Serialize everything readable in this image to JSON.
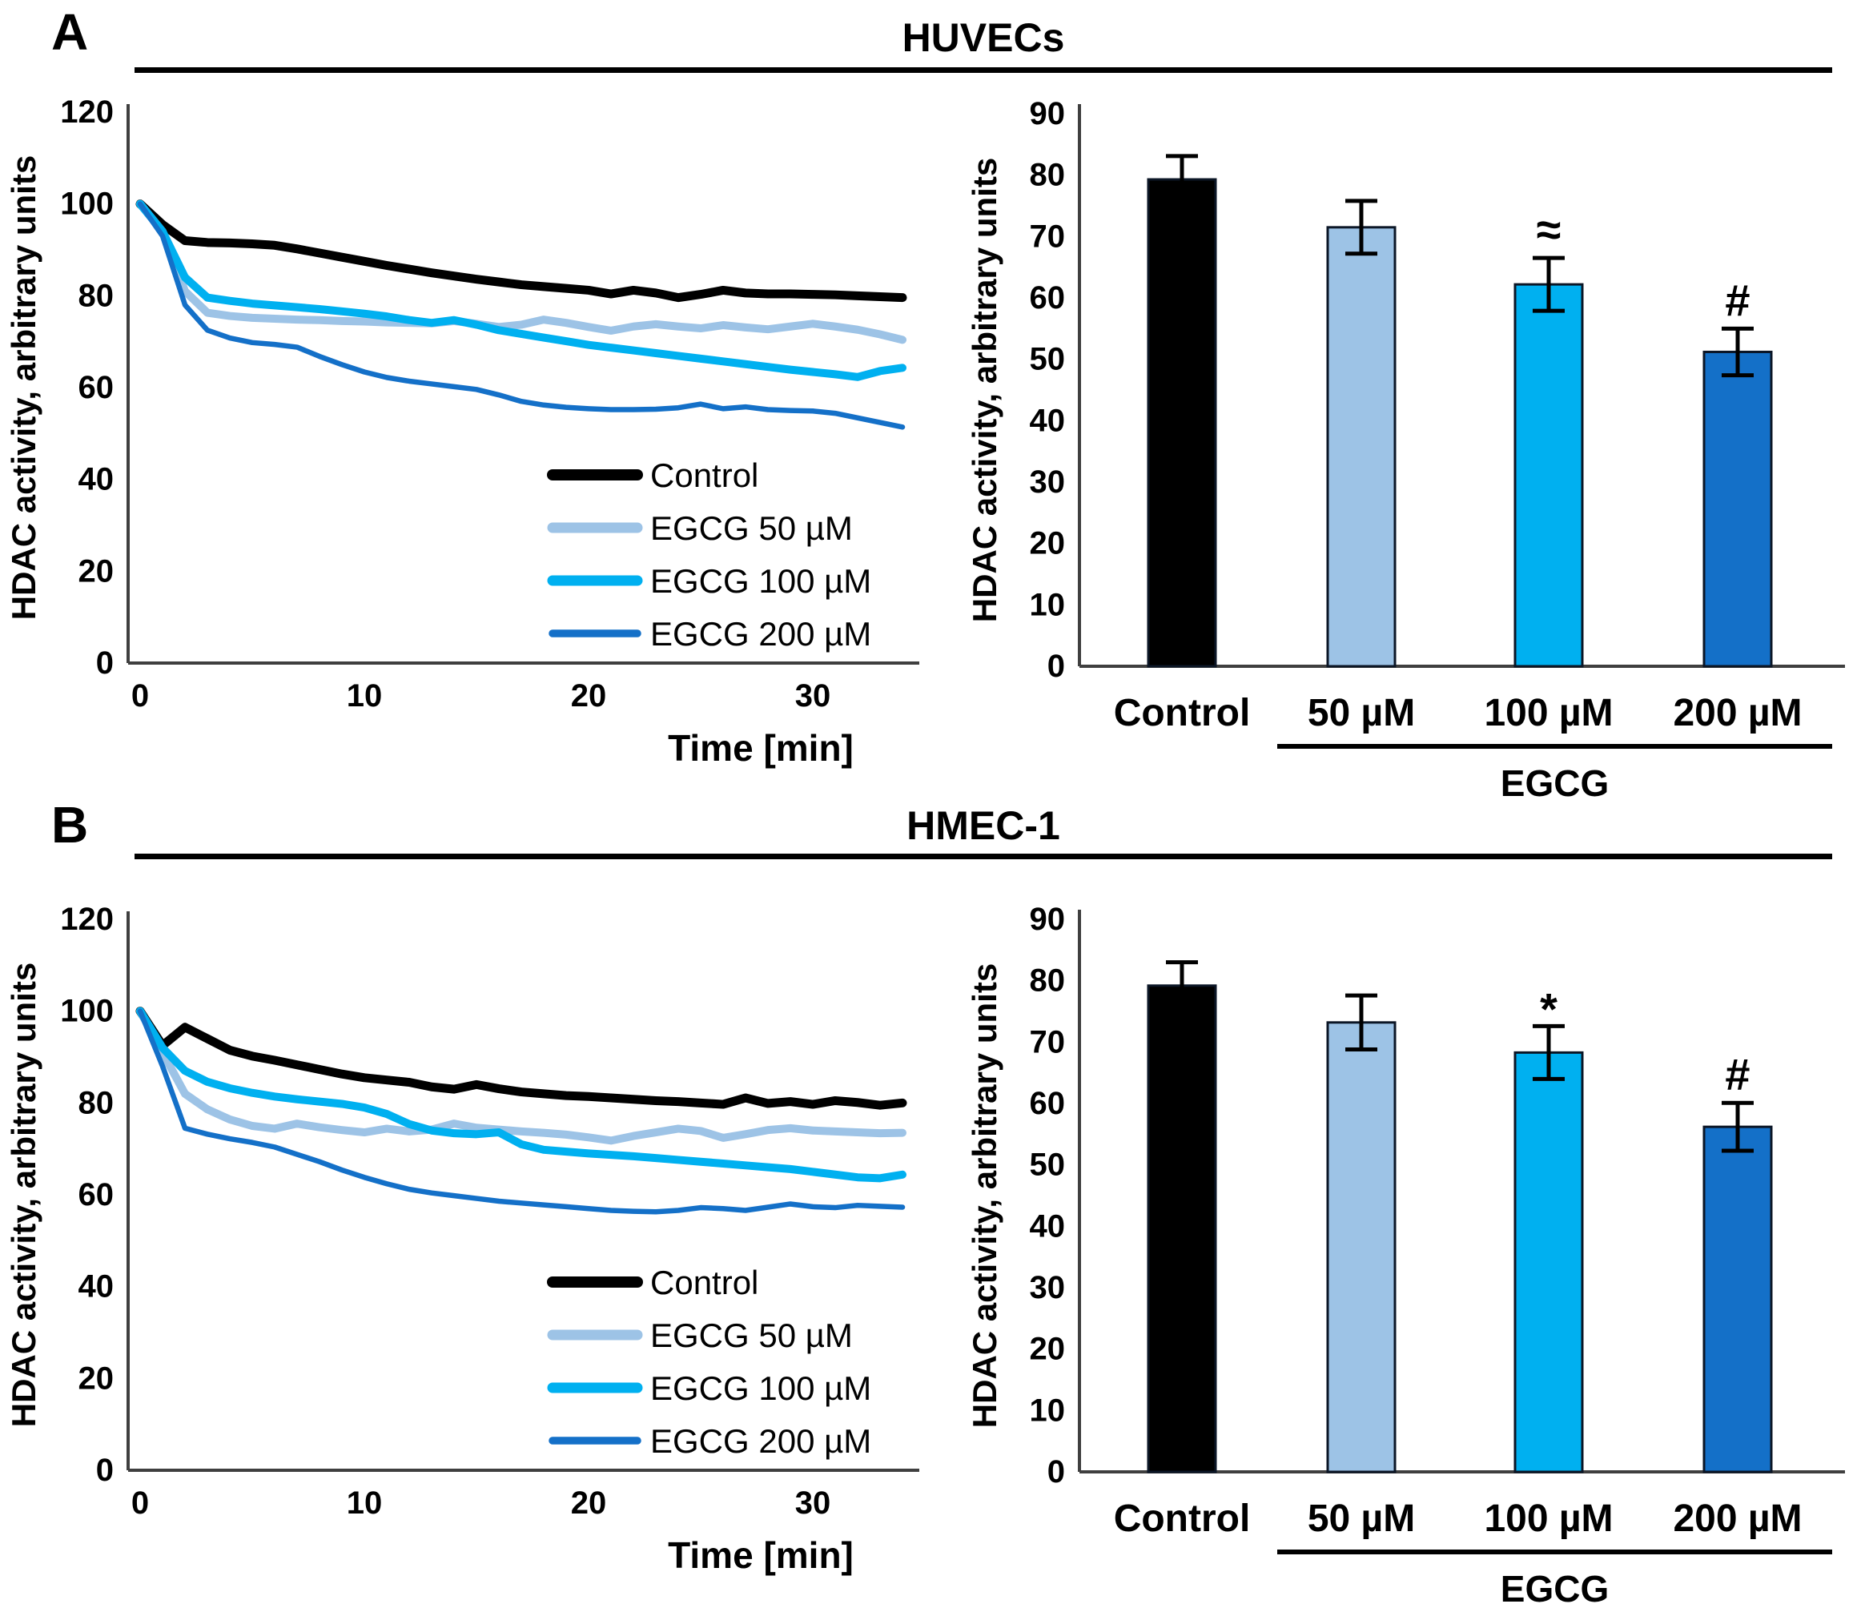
{
  "figure": {
    "panels": [
      {
        "label": "A",
        "title": "HUVECs"
      },
      {
        "label": "B",
        "title": "HMEC-1"
      }
    ]
  },
  "colors": {
    "control": "#000000",
    "egcg_50": "#9DC3E6",
    "egcg_100": "#00B0F0",
    "egcg_200": "#1470C8",
    "bar_border": "#0B1626",
    "axis": "#3F3F3F",
    "text": "#000000"
  },
  "chart_data": [
    {
      "panel": "A",
      "type": "line",
      "title": "HUVECs",
      "xlabel": "Time [min]",
      "ylabel": "HDAC activity, arbitrary units",
      "xlim": [
        0,
        34
      ],
      "ylim": [
        0,
        120
      ],
      "xticks": [
        0,
        10,
        20,
        30
      ],
      "yticks": [
        0,
        20,
        40,
        60,
        80,
        100,
        120
      ],
      "x_start": 0,
      "x_step_minutes": 1,
      "grid": false,
      "legend_position": "inside-bottom-right",
      "series": [
        {
          "name": "Control",
          "color": "#000000",
          "width": 11,
          "values": [
            100,
            95.5,
            92,
            91.6,
            91.5,
            91.3,
            91,
            90.2,
            89.3,
            88.4,
            87.5,
            86.6,
            85.8,
            85,
            84.3,
            83.6,
            83,
            82.4,
            82,
            81.6,
            81.2,
            80.4,
            81.2,
            80.6,
            79.6,
            80.3,
            81.2,
            80.6,
            80.4,
            80.4,
            80.3,
            80.2,
            80,
            79.8,
            79.6
          ]
        },
        {
          "name": "EGCG 50 µM",
          "color": "#9DC3E6",
          "width": 10,
          "values": [
            100,
            94,
            81,
            76.3,
            75.6,
            75.2,
            75,
            74.8,
            74.7,
            74.5,
            74.4,
            74.2,
            74.1,
            74,
            74.5,
            73.9,
            73.2,
            73.7,
            74.8,
            74.1,
            73.2,
            72.4,
            73.3,
            73.8,
            73.3,
            72.9,
            73.6,
            73.1,
            72.7,
            73.3,
            73.9,
            73.3,
            72.6,
            71.6,
            70.4
          ]
        },
        {
          "name": "EGCG 100 µM",
          "color": "#00B0F0",
          "width": 10,
          "values": [
            100,
            94,
            84,
            79.6,
            78.9,
            78.3,
            77.9,
            77.5,
            77.1,
            76.6,
            76.1,
            75.5,
            74.7,
            74.1,
            74.7,
            73.7,
            72.5,
            71.7,
            70.9,
            70.1,
            69.3,
            68.7,
            68.1,
            67.5,
            66.9,
            66.3,
            65.7,
            65.1,
            64.5,
            63.9,
            63.4,
            62.9,
            62.3,
            63.6,
            64.3
          ]
        },
        {
          "name": "EGCG 200 µM",
          "color": "#1470C8",
          "width": 6.5,
          "values": [
            100,
            93,
            78,
            72.5,
            70.8,
            69.8,
            69.4,
            68.8,
            66.8,
            65,
            63.4,
            62.2,
            61.4,
            60.8,
            60.2,
            59.6,
            58.4,
            57,
            56.2,
            55.7,
            55.4,
            55.2,
            55.2,
            55.3,
            55.6,
            56.4,
            55.4,
            55.8,
            55.2,
            55,
            54.9,
            54.4,
            53.4,
            52.4,
            51.4
          ]
        }
      ]
    },
    {
      "panel": "A",
      "type": "bar",
      "title": "HUVECs",
      "ylabel": "HDAC activity, arbitrary units",
      "ylim": [
        0,
        90
      ],
      "yticks": [
        0,
        10,
        20,
        30,
        40,
        50,
        60,
        70,
        80,
        90
      ],
      "categories": [
        "Control",
        "50 µM",
        "100 µM",
        "200 µM"
      ],
      "values": [
        79.3,
        71.5,
        62.2,
        51.2
      ],
      "errors": [
        3.8,
        4.3,
        4.3,
        3.8
      ],
      "annotations": [
        "",
        "",
        "≈",
        "#"
      ],
      "bar_colors": [
        "#000000",
        "#9DC3E6",
        "#00B0F0",
        "#1470C8"
      ],
      "group_label": "EGCG",
      "group_underline_from": 1,
      "group_underline_to": 3
    },
    {
      "panel": "B",
      "type": "line",
      "title": "HMEC-1",
      "xlabel": "Time [min]",
      "ylabel": "HDAC activity, arbitrary units",
      "xlim": [
        0,
        34
      ],
      "ylim": [
        0,
        120
      ],
      "xticks": [
        0,
        10,
        20,
        30
      ],
      "yticks": [
        0,
        20,
        40,
        60,
        80,
        100,
        120
      ],
      "x_start": 0,
      "x_step_minutes": 1,
      "grid": false,
      "legend_position": "inside-bottom-right",
      "series": [
        {
          "name": "Control",
          "color": "#000000",
          "width": 11,
          "values": [
            100,
            92.5,
            96.5,
            94,
            91.5,
            90.2,
            89.3,
            88.3,
            87.3,
            86.3,
            85.5,
            85,
            84.5,
            83.5,
            83,
            84,
            83.1,
            82.4,
            82,
            81.6,
            81.4,
            81.1,
            80.8,
            80.5,
            80.3,
            80,
            79.7,
            81.1,
            79.9,
            80.3,
            79.7,
            80.5,
            80.1,
            79.5,
            80
          ]
        },
        {
          "name": "EGCG 50 µM",
          "color": "#9DC3E6",
          "width": 10,
          "values": [
            100,
            91,
            82,
            78.6,
            76.4,
            75,
            74.4,
            75.5,
            74.7,
            74.1,
            73.6,
            74.4,
            73.8,
            74.2,
            75.5,
            74.6,
            74.2,
            73.8,
            73.5,
            73.1,
            72.5,
            71.8,
            72.8,
            73.6,
            74.4,
            73.9,
            72.4,
            73.2,
            74.1,
            74.5,
            74,
            73.8,
            73.6,
            73.4,
            73.5
          ]
        },
        {
          "name": "EGCG 100 µM",
          "color": "#00B0F0",
          "width": 10,
          "values": [
            100,
            92,
            87,
            84.6,
            83.2,
            82.2,
            81.4,
            80.8,
            80.3,
            79.8,
            79,
            77.6,
            75.4,
            74,
            73.4,
            73.2,
            73.6,
            71,
            69.8,
            69.4,
            69,
            68.7,
            68.4,
            68,
            67.6,
            67.2,
            66.8,
            66.4,
            66,
            65.6,
            65,
            64.4,
            63.8,
            63.6,
            64.4
          ]
        },
        {
          "name": "EGCG 200 µM",
          "color": "#1470C8",
          "width": 6.5,
          "values": [
            100,
            88,
            74.5,
            73.2,
            72.2,
            71.4,
            70.4,
            68.8,
            67.2,
            65.4,
            63.8,
            62.4,
            61.2,
            60.4,
            59.8,
            59.2,
            58.6,
            58.2,
            57.8,
            57.4,
            57,
            56.6,
            56.4,
            56.3,
            56.6,
            57.2,
            57,
            56.6,
            57.3,
            58,
            57.4,
            57.2,
            57.7,
            57.5,
            57.3
          ]
        }
      ]
    },
    {
      "panel": "B",
      "type": "bar",
      "title": "HMEC-1",
      "ylabel": "HDAC activity, arbitrary units",
      "ylim": [
        0,
        90
      ],
      "yticks": [
        0,
        10,
        20,
        30,
        40,
        50,
        60,
        70,
        80,
        90
      ],
      "categories": [
        "Control",
        "50 µM",
        "100 µM",
        "200 µM"
      ],
      "values": [
        79.2,
        73.2,
        68.3,
        56.2
      ],
      "errors": [
        3.8,
        4.4,
        4.3,
        3.9
      ],
      "annotations": [
        "",
        "",
        "*",
        "#"
      ],
      "bar_colors": [
        "#000000",
        "#9DC3E6",
        "#00B0F0",
        "#1470C8"
      ],
      "group_label": "EGCG",
      "group_underline_from": 1,
      "group_underline_to": 3
    }
  ]
}
